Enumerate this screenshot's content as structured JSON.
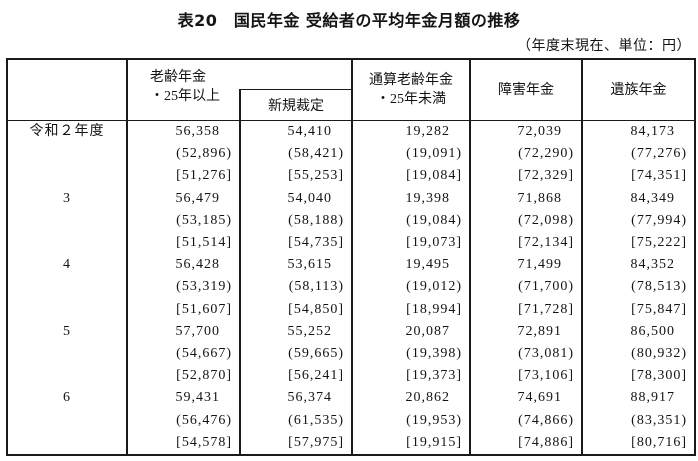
{
  "title": "表20　国民年金 受給者の平均年金月額の推移",
  "note": "（年度末現在、単位：円）",
  "header": {
    "old_age": {
      "line1": "老齢年金",
      "line2": "・25年以上"
    },
    "new_ruling": "新規裁定",
    "combined": {
      "line1": "通算老齢年金",
      "line2": "・25年未満"
    },
    "disability": "障害年金",
    "survivor": "遺族年金"
  },
  "table": {
    "rows": [
      {
        "year": "令和２年度",
        "cells": [
          [
            "56,358",
            "(52,896)",
            "[51,276]"
          ],
          [
            "54,410",
            "(58,421)",
            "[55,253]"
          ],
          [
            "19,282",
            "(19,091)",
            "[19,084]"
          ],
          [
            "72,039",
            "(72,290)",
            "[72,329]"
          ],
          [
            "84,173",
            "(77,276)",
            "[74,351]"
          ]
        ]
      },
      {
        "year": "3",
        "cells": [
          [
            "56,479",
            "(53,185)",
            "[51,514]"
          ],
          [
            "54,040",
            "(58,188)",
            "[54,735]"
          ],
          [
            "19,398",
            "(19,084)",
            "[19,073]"
          ],
          [
            "71,868",
            "(72,098)",
            "[72,134]"
          ],
          [
            "84,349",
            "(77,994)",
            "[75,222]"
          ]
        ]
      },
      {
        "year": "4",
        "cells": [
          [
            "56,428",
            "(53,319)",
            "[51,607]"
          ],
          [
            "53,615",
            "(58,113)",
            "[54,850]"
          ],
          [
            "19,495",
            "(19,012)",
            "[18,994]"
          ],
          [
            "71,499",
            "(71,700)",
            "[71,728]"
          ],
          [
            "84,352",
            "(78,513)",
            "[75,847]"
          ]
        ]
      },
      {
        "year": "5",
        "cells": [
          [
            "57,700",
            "(54,667)",
            "[52,870]"
          ],
          [
            "55,252",
            "(59,665)",
            "[56,241]"
          ],
          [
            "20,087",
            "(19,398)",
            "[19,373]"
          ],
          [
            "72,891",
            "(73,081)",
            "[73,106]"
          ],
          [
            "86,500",
            "(80,932)",
            "[78,300]"
          ]
        ]
      },
      {
        "year": "6",
        "cells": [
          [
            "59,431",
            "(56,476)",
            "[54,578]"
          ],
          [
            "56,374",
            "(61,535)",
            "[57,975]"
          ],
          [
            "20,862",
            "(19,953)",
            "[19,915]"
          ],
          [
            "74,691",
            "(74,866)",
            "[74,886]"
          ],
          [
            "88,917",
            "(83,351)",
            "[80,716]"
          ]
        ]
      }
    ]
  }
}
